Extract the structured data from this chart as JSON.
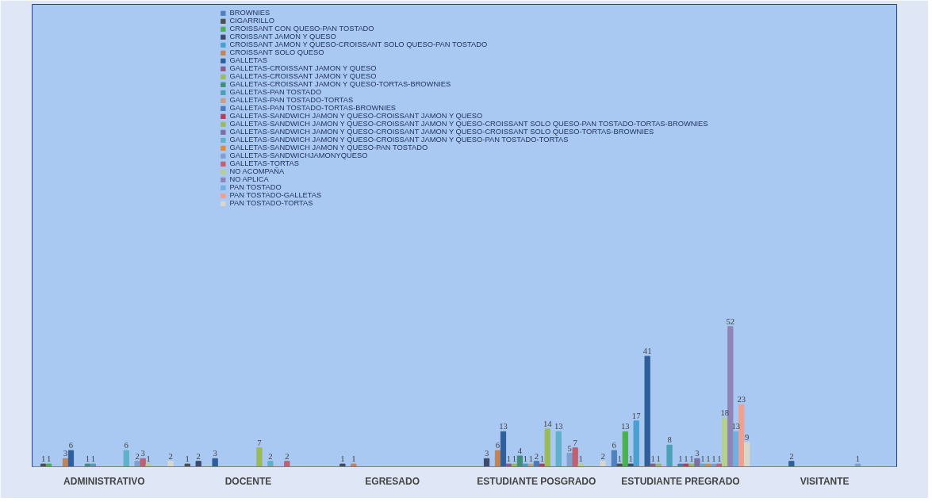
{
  "chart_data": {
    "type": "bar",
    "categories": [
      "ADMINISTRATIVO",
      "DOCENTE",
      "EGRESADO",
      "ESTUDIANTE POSGRADO",
      "ESTUDIANTE PREGRADO",
      "VISITANTE"
    ],
    "series": [
      {
        "name": "BROWNIES",
        "color": "#4f81bd",
        "values": [
          null,
          null,
          null,
          null,
          6,
          null
        ]
      },
      {
        "name": "CIGARRILLO",
        "color": "#4d4d4d",
        "values": [
          1,
          1,
          null,
          null,
          1,
          null
        ]
      },
      {
        "name": "CROISSANT CON QUESO-PAN TOSTADO",
        "color": "#4caf50",
        "values": [
          1,
          null,
          null,
          null,
          13,
          null
        ]
      },
      {
        "name": "CROISSANT JAMON Y QUESO",
        "color": "#3c4a6b",
        "values": [
          null,
          2,
          1,
          3,
          1,
          null
        ]
      },
      {
        "name": "CROISSANT JAMON Y QUESO-CROISSANT SOLO QUESO-PAN TOSTADO",
        "color": "#4a9fd0",
        "values": [
          null,
          null,
          null,
          null,
          17,
          null
        ]
      },
      {
        "name": "CROISSANT SOLO QUESO",
        "color": "#c0845a",
        "values": [
          3,
          null,
          1,
          6,
          null,
          null
        ]
      },
      {
        "name": "GALLETAS",
        "color": "#2f5f9a",
        "values": [
          6,
          3,
          null,
          13,
          41,
          2
        ]
      },
      {
        "name": "GALLETAS-CROISSANT JAMON Y QUESO",
        "color": "#8b5a8b",
        "values": [
          null,
          null,
          null,
          1,
          1,
          null
        ]
      },
      {
        "name": "GALLETAS-CROISSANT JAMON Y QUESO",
        "color": "#9bbb59",
        "values": [
          null,
          null,
          null,
          1,
          1,
          null
        ]
      },
      {
        "name": "GALLETAS-CROISSANT JAMON Y QUESO-TORTAS-BROWNIES",
        "color": "#3f8f7a",
        "values": [
          1,
          null,
          null,
          4,
          null,
          null
        ]
      },
      {
        "name": "GALLETAS-PAN TOSTADO",
        "color": "#4aa0b8",
        "values": [
          1,
          null,
          null,
          1,
          8,
          null
        ]
      },
      {
        "name": "GALLETAS-PAN TOSTADO-TORTAS",
        "color": "#c8a080",
        "values": [
          null,
          null,
          null,
          1,
          null,
          null
        ]
      },
      {
        "name": "GALLETAS-PAN TOSTADO-TORTAS-BROWNIES",
        "color": "#4a7ab8",
        "values": [
          null,
          null,
          null,
          2,
          1,
          null
        ]
      },
      {
        "name": "GALLETAS-SANDWICH JAMON Y QUESO-CROISSANT JAMON Y QUESO",
        "color": "#b0405a",
        "values": [
          null,
          null,
          null,
          1,
          1,
          null
        ]
      },
      {
        "name": "GALLETAS-SANDWICH JAMON Y QUESO-CROISSANT JAMON Y QUESO-CROISSANT SOLO QUESO-PAN TOSTADO-TORTAS-BROWNIES",
        "color": "#9bbb59",
        "values": [
          null,
          7,
          null,
          14,
          1,
          null
        ]
      },
      {
        "name": "GALLETAS-SANDWICH JAMON Y QUESO-CROISSANT JAMON Y QUESO-CROISSANT SOLO QUESO-TORTAS-BROWNIES",
        "color": "#7b6fa8",
        "values": [
          null,
          null,
          null,
          null,
          3,
          null
        ]
      },
      {
        "name": "GALLETAS-SANDWICH JAMON Y QUESO-CROISSANT JAMON Y QUESO-PAN TOSTADO-TORTAS",
        "color": "#5fb0c8",
        "values": [
          6,
          2,
          null,
          13,
          1,
          null
        ]
      },
      {
        "name": "GALLETAS-SANDWICH JAMON Y QUESO-PAN TOSTADO",
        "color": "#e08a3c",
        "values": [
          null,
          null,
          null,
          null,
          1,
          null
        ]
      },
      {
        "name": "GALLETAS-SANDWICHJAMONYQUESO",
        "color": "#7f9fcf",
        "values": [
          2,
          null,
          null,
          5,
          1,
          1
        ]
      },
      {
        "name": "GALLETAS-TORTAS",
        "color": "#c06070",
        "values": [
          3,
          2,
          null,
          7,
          1,
          null
        ]
      },
      {
        "name": "NO ACOMPAÑA",
        "color": "#b5d08a",
        "values": [
          1,
          null,
          null,
          1,
          18,
          null
        ]
      },
      {
        "name": "NO APLICA",
        "color": "#8f84b8",
        "values": [
          null,
          null,
          null,
          null,
          52,
          null
        ]
      },
      {
        "name": "PAN TOSTADO",
        "color": "#6fb0e0",
        "values": [
          null,
          null,
          null,
          null,
          13,
          null
        ]
      },
      {
        "name": "PAN TOSTADO-GALLETAS",
        "color": "#f0a090",
        "values": [
          null,
          null,
          null,
          null,
          23,
          null
        ]
      },
      {
        "name": "PAN TOSTADO-TORTAS",
        "color": "#d8d8c8",
        "values": [
          2,
          null,
          null,
          2,
          9,
          null
        ]
      }
    ],
    "data_labels": true,
    "legend": "top",
    "grid": false,
    "tick_labels": "x"
  }
}
